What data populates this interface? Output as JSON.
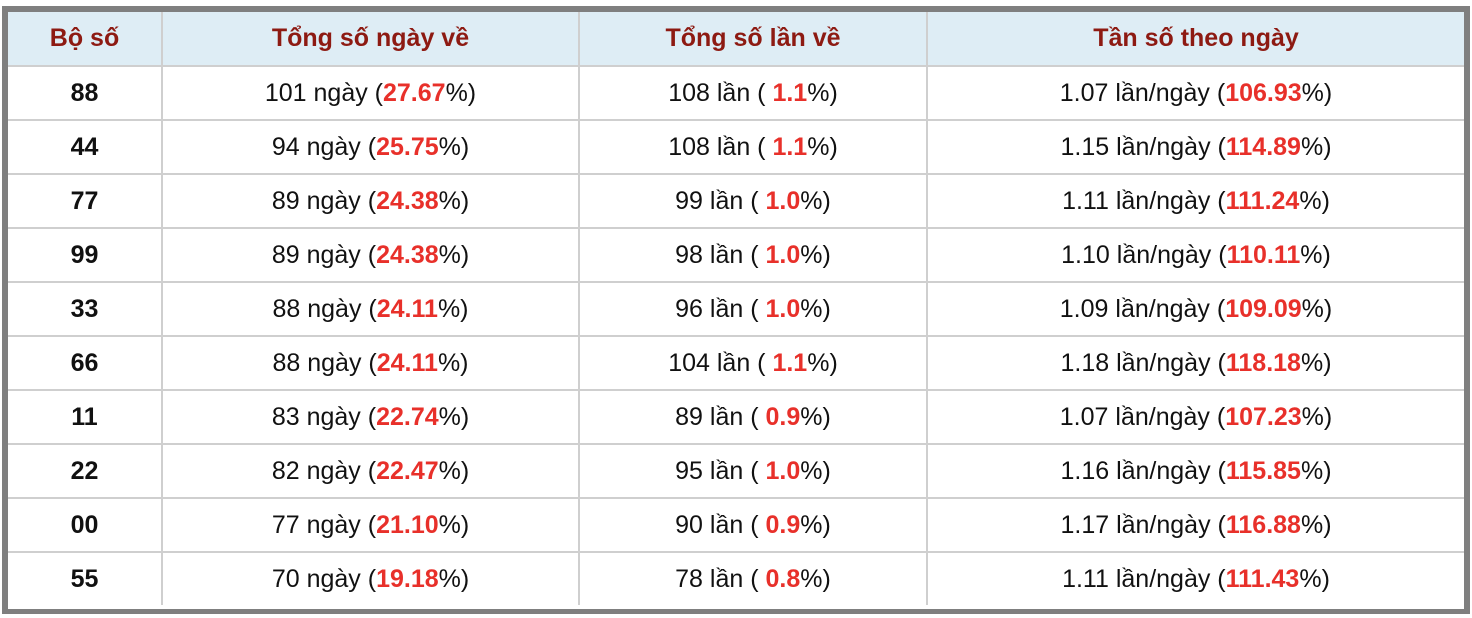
{
  "headers": [
    "Bộ số",
    "Tổng số ngày về",
    "Tổng số lần về",
    "Tần số theo ngày"
  ],
  "colors": {
    "header_text": "#8d1a12",
    "header_bg": "#deedf5",
    "highlight": "#e8302a"
  },
  "rows": [
    {
      "bo_so": "88",
      "ngay": "101 ngày (",
      "ngay_pct": "27.67",
      "lan": "108 lần ( ",
      "lan_pct": "1.1",
      "tanso": "1.07 lần/ngày (",
      "tanso_pct": "106.93"
    },
    {
      "bo_so": "44",
      "ngay": "94 ngày (",
      "ngay_pct": "25.75",
      "lan": "108 lần ( ",
      "lan_pct": "1.1",
      "tanso": "1.15 lần/ngày (",
      "tanso_pct": "114.89"
    },
    {
      "bo_so": "77",
      "ngay": "89 ngày (",
      "ngay_pct": "24.38",
      "lan": "99 lần ( ",
      "lan_pct": "1.0",
      "tanso": "1.11 lần/ngày (",
      "tanso_pct": "111.24"
    },
    {
      "bo_so": "99",
      "ngay": "89 ngày (",
      "ngay_pct": "24.38",
      "lan": "98 lần ( ",
      "lan_pct": "1.0",
      "tanso": "1.10 lần/ngày (",
      "tanso_pct": "110.11"
    },
    {
      "bo_so": "33",
      "ngay": "88 ngày (",
      "ngay_pct": "24.11",
      "lan": "96 lần ( ",
      "lan_pct": "1.0",
      "tanso": "1.09 lần/ngày (",
      "tanso_pct": "109.09"
    },
    {
      "bo_so": "66",
      "ngay": "88 ngày (",
      "ngay_pct": "24.11",
      "lan": "104 lần ( ",
      "lan_pct": "1.1",
      "tanso": "1.18 lần/ngày (",
      "tanso_pct": "118.18"
    },
    {
      "bo_so": "11",
      "ngay": "83 ngày (",
      "ngay_pct": "22.74",
      "lan": "89 lần ( ",
      "lan_pct": "0.9",
      "tanso": "1.07 lần/ngày (",
      "tanso_pct": "107.23"
    },
    {
      "bo_so": "22",
      "ngay": "82 ngày (",
      "ngay_pct": "22.47",
      "lan": "95 lần ( ",
      "lan_pct": "1.0",
      "tanso": "1.16 lần/ngày (",
      "tanso_pct": "115.85"
    },
    {
      "bo_so": "00",
      "ngay": "77 ngày (",
      "ngay_pct": "21.10",
      "lan": "90 lần ( ",
      "lan_pct": "0.9",
      "tanso": "1.17 lần/ngày (",
      "tanso_pct": "116.88"
    },
    {
      "bo_so": "55",
      "ngay": "70 ngày (",
      "ngay_pct": "19.18",
      "lan": "78 lần ( ",
      "lan_pct": "0.8",
      "tanso": "1.11 lần/ngày (",
      "tanso_pct": "111.43"
    }
  ],
  "pct_suffix": "%)"
}
